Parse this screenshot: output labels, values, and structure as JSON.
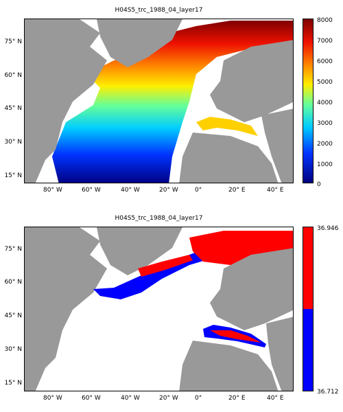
{
  "panels": [
    {
      "title": "H04S5_trc_1988_04_layer17"
    },
    {
      "title": "H04S5_trc_1988_04_layer17"
    }
  ],
  "lat_ticks": [
    "75° N",
    "60° N",
    "45° N",
    "30° N",
    "15° N"
  ],
  "lon_ticks": [
    "80° W",
    "60° W",
    "40° W",
    "20° W",
    "0°",
    "20° E",
    "40° E"
  ],
  "colorbar_top": {
    "ticks": [
      "8000",
      "7000",
      "6000",
      "5000",
      "4000",
      "3000",
      "2000",
      "1000",
      "0"
    ],
    "range": [
      0,
      8000
    ],
    "colormap": "jet"
  },
  "colorbar_bottom": {
    "max_label": "36.946",
    "min_label": "36.712",
    "colors": [
      "#ff0000",
      "#0000ff"
    ]
  },
  "colors": {
    "land": "#999999",
    "ocean_missing": "#ffffff"
  }
}
